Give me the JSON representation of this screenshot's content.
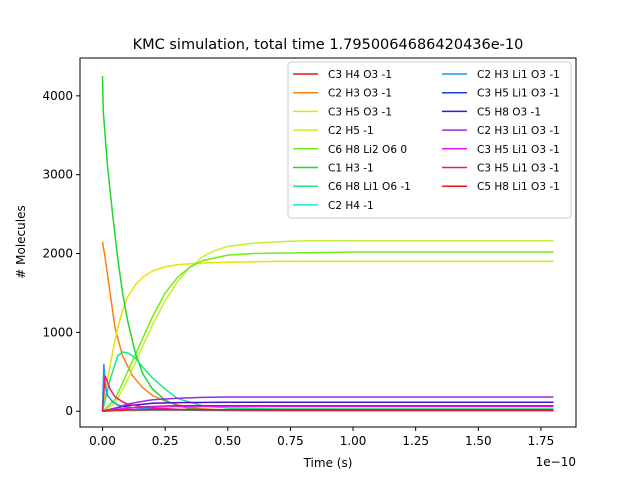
{
  "chart_data": {
    "type": "line",
    "title": "KMC simulation, total time 1.7950064686420436e-10",
    "xlabel": "Time (s)",
    "ylabel": "# Molecules",
    "x_multiplier_label": "1e−10",
    "xlim": [
      -0.09,
      1.89
    ],
    "ylim": [
      -200,
      4480
    ],
    "xticks": [
      0.0,
      0.25,
      0.5,
      0.75,
      1.0,
      1.25,
      1.5,
      1.75
    ],
    "xtick_labels": [
      "0.00",
      "0.25",
      "0.50",
      "0.75",
      "1.00",
      "1.25",
      "1.50",
      "1.75"
    ],
    "yticks": [
      0,
      1000,
      2000,
      3000,
      4000
    ],
    "ytick_labels": [
      "0",
      "1000",
      "2000",
      "3000",
      "4000"
    ],
    "grid": false,
    "legend_position": "top-right",
    "series": [
      {
        "name": "C3 H4 O3 -1",
        "color": "#e41a1c",
        "x": [
          0,
          0.05,
          0.1,
          0.15,
          0.2,
          0.3,
          0.5,
          0.8,
          1.2,
          1.8
        ],
        "y": [
          0,
          20,
          18,
          15,
          14,
          12,
          12,
          12,
          12,
          12
        ]
      },
      {
        "name": "C2 H3 O3 -1",
        "color": "#ff7f0e",
        "x": [
          0,
          0.01,
          0.03,
          0.05,
          0.08,
          0.12,
          0.16,
          0.2,
          0.25,
          0.3,
          0.35,
          0.4,
          0.5,
          0.6,
          0.8,
          1.0,
          1.8
        ],
        "y": [
          2150,
          1950,
          1500,
          1050,
          700,
          450,
          300,
          200,
          130,
          80,
          50,
          30,
          15,
          10,
          5,
          5,
          5
        ]
      },
      {
        "name": "C3 H5 O3 -1",
        "color": "#f0e000",
        "x": [
          0,
          0.02,
          0.04,
          0.06,
          0.08,
          0.1,
          0.13,
          0.16,
          0.2,
          0.25,
          0.3,
          0.4,
          0.5,
          0.7,
          1.0,
          1.8
        ],
        "y": [
          0,
          400,
          750,
          1050,
          1280,
          1450,
          1600,
          1700,
          1780,
          1830,
          1860,
          1880,
          1890,
          1900,
          1900,
          1900
        ]
      },
      {
        "name": "C2 H5 -1",
        "color": "#c8f02a",
        "x": [
          0,
          0.05,
          0.1,
          0.15,
          0.2,
          0.25,
          0.3,
          0.35,
          0.4,
          0.45,
          0.5,
          0.6,
          0.7,
          0.8,
          1.0,
          1.3,
          1.8
        ],
        "y": [
          0,
          100,
          400,
          750,
          1100,
          1400,
          1650,
          1830,
          1960,
          2040,
          2090,
          2130,
          2150,
          2160,
          2160,
          2160,
          2160
        ]
      },
      {
        "name": "C6 H8 Li2 O6 0",
        "color": "#6cf015",
        "x": [
          0,
          0.05,
          0.1,
          0.15,
          0.2,
          0.25,
          0.3,
          0.35,
          0.4,
          0.5,
          0.6,
          0.8,
          1.0,
          1.8
        ],
        "y": [
          0,
          150,
          500,
          850,
          1200,
          1500,
          1700,
          1830,
          1910,
          1980,
          2000,
          2010,
          2020,
          2020
        ]
      },
      {
        "name": "C1 H3 -1",
        "color": "#22d62a",
        "x": [
          0,
          0.003,
          0.01,
          0.02,
          0.04,
          0.06,
          0.08,
          0.1,
          0.13,
          0.16,
          0.2,
          0.25,
          0.3,
          0.35,
          0.4,
          0.5,
          0.7,
          1.0,
          1.8
        ],
        "y": [
          4250,
          3800,
          3500,
          3100,
          2500,
          1950,
          1500,
          1150,
          750,
          480,
          280,
          140,
          70,
          35,
          18,
          10,
          8,
          8,
          8
        ]
      },
      {
        "name": "C6 H8 Li1 O6 -1",
        "color": "#1ee680",
        "x": [
          0,
          0.03,
          0.06,
          0.08,
          0.1,
          0.13,
          0.16,
          0.2,
          0.25,
          0.3,
          0.4,
          0.5,
          0.7,
          1.0,
          1.8
        ],
        "y": [
          0,
          400,
          700,
          750,
          740,
          680,
          560,
          420,
          280,
          160,
          70,
          40,
          30,
          30,
          30
        ]
      },
      {
        "name": "C2 H4 -1",
        "color": "#19e6e6",
        "x": [
          0,
          0.05,
          0.1,
          0.2,
          0.3,
          0.5,
          1.0,
          1.8
        ],
        "y": [
          0,
          5,
          8,
          10,
          10,
          10,
          10,
          10
        ]
      },
      {
        "name": "C2 H3 Li1 O3 -1",
        "color": "#1a9ae0",
        "x": [
          0,
          0.005,
          0.01,
          0.02,
          0.04,
          0.06,
          0.1,
          0.2,
          0.4,
          1.0,
          1.8
        ],
        "y": [
          0,
          600,
          350,
          200,
          120,
          80,
          50,
          25,
          10,
          5,
          5
        ]
      },
      {
        "name": "C3 H5 Li1 O3 -1",
        "color": "#1a3ee0",
        "x": [
          0,
          0.05,
          0.1,
          0.2,
          0.3,
          0.5,
          0.8,
          1.2,
          1.8
        ],
        "y": [
          0,
          20,
          40,
          60,
          70,
          70,
          70,
          70,
          70
        ]
      },
      {
        "name": "C5 H8 O3 -1",
        "color": "#4a10d0",
        "x": [
          0,
          0.05,
          0.1,
          0.2,
          0.3,
          0.5,
          0.8,
          1.2,
          1.8
        ],
        "y": [
          0,
          40,
          70,
          100,
          110,
          115,
          115,
          115,
          115
        ]
      },
      {
        "name": "C2 H3 Li1 O3 -1",
        "color": "#9a2ae6",
        "x": [
          0,
          0.05,
          0.1,
          0.15,
          0.2,
          0.3,
          0.4,
          0.5,
          0.7,
          1.0,
          1.8
        ],
        "y": [
          0,
          40,
          90,
          120,
          145,
          165,
          175,
          180,
          180,
          180,
          180
        ]
      },
      {
        "name": "C3 H5 Li1 O3 -1",
        "color": "#e61ae6",
        "x": [
          0,
          0.05,
          0.1,
          0.2,
          0.3,
          0.5,
          0.8,
          1.2,
          1.8
        ],
        "y": [
          0,
          20,
          40,
          55,
          60,
          60,
          60,
          60,
          60
        ]
      },
      {
        "name": "C3 H5 Li1 O3 -1",
        "color": "#e6197a",
        "x": [
          0,
          0.01,
          0.03,
          0.05,
          0.08,
          0.1,
          0.15,
          0.2,
          0.3,
          0.5,
          1.0,
          1.8
        ],
        "y": [
          0,
          450,
          280,
          180,
          120,
          90,
          60,
          40,
          25,
          15,
          10,
          10
        ]
      },
      {
        "name": "C5 H8 Li1 O3 -1",
        "color": "#e61a1a",
        "x": [
          0,
          0.05,
          0.1,
          0.2,
          0.3,
          0.5,
          1.0,
          1.8
        ],
        "y": [
          0,
          10,
          15,
          20,
          20,
          20,
          20,
          20
        ]
      }
    ]
  }
}
